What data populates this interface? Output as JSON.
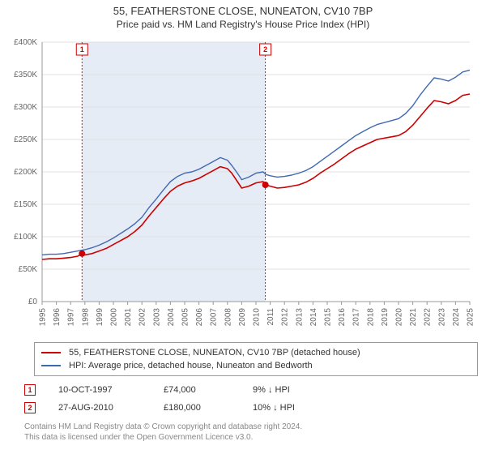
{
  "title": {
    "line1": "55, FEATHERSTONE CLOSE, NUNEATON, CV10 7BP",
    "line2": "Price paid vs. HM Land Registry's House Price Index (HPI)"
  },
  "chart": {
    "type": "line",
    "background_color": "#ffffff",
    "grid_color": "#e0e0e0",
    "axis_color": "#999999",
    "y": {
      "label_prefix": "£",
      "min": 0,
      "max": 400000,
      "tick_step": 50000,
      "ticks": [
        "£0",
        "£50K",
        "£100K",
        "£150K",
        "£200K",
        "£250K",
        "£300K",
        "£350K",
        "£400K"
      ]
    },
    "x": {
      "min": 1995,
      "max": 2025,
      "ticks": [
        "1995",
        "1996",
        "1997",
        "1998",
        "1999",
        "2000",
        "2001",
        "2002",
        "2003",
        "2004",
        "2005",
        "2006",
        "2007",
        "2008",
        "2009",
        "2010",
        "2011",
        "2012",
        "2013",
        "2014",
        "2015",
        "2016",
        "2017",
        "2018",
        "2019",
        "2020",
        "2021",
        "2022",
        "2023",
        "2024",
        "2025"
      ]
    },
    "series": [
      {
        "id": "price_paid",
        "color": "#cc0000",
        "width": 1.6,
        "label": "55, FEATHERSTONE CLOSE, NUNEATON, CV10 7BP (detached house)",
        "points": [
          [
            1995.0,
            65000
          ],
          [
            1995.5,
            66000
          ],
          [
            1996.0,
            66000
          ],
          [
            1996.5,
            67000
          ],
          [
            1997.0,
            68000
          ],
          [
            1997.5,
            70000
          ],
          [
            1997.8,
            74000
          ],
          [
            1998.0,
            72000
          ],
          [
            1998.5,
            74000
          ],
          [
            1999.0,
            78000
          ],
          [
            1999.5,
            82000
          ],
          [
            2000.0,
            88000
          ],
          [
            2000.5,
            94000
          ],
          [
            2001.0,
            100000
          ],
          [
            2001.5,
            108000
          ],
          [
            2002.0,
            118000
          ],
          [
            2002.5,
            132000
          ],
          [
            2003.0,
            145000
          ],
          [
            2003.5,
            158000
          ],
          [
            2004.0,
            170000
          ],
          [
            2004.5,
            178000
          ],
          [
            2005.0,
            183000
          ],
          [
            2005.5,
            186000
          ],
          [
            2006.0,
            190000
          ],
          [
            2006.5,
            196000
          ],
          [
            2007.0,
            202000
          ],
          [
            2007.5,
            208000
          ],
          [
            2008.0,
            205000
          ],
          [
            2008.3,
            198000
          ],
          [
            2008.7,
            185000
          ],
          [
            2009.0,
            175000
          ],
          [
            2009.5,
            178000
          ],
          [
            2010.0,
            183000
          ],
          [
            2010.5,
            185000
          ],
          [
            2010.7,
            180000
          ],
          [
            2011.0,
            178000
          ],
          [
            2011.5,
            175000
          ],
          [
            2012.0,
            176000
          ],
          [
            2012.5,
            178000
          ],
          [
            2013.0,
            180000
          ],
          [
            2013.5,
            184000
          ],
          [
            2014.0,
            190000
          ],
          [
            2014.5,
            198000
          ],
          [
            2015.0,
            205000
          ],
          [
            2015.5,
            212000
          ],
          [
            2016.0,
            220000
          ],
          [
            2016.5,
            228000
          ],
          [
            2017.0,
            235000
          ],
          [
            2017.5,
            240000
          ],
          [
            2018.0,
            245000
          ],
          [
            2018.5,
            250000
          ],
          [
            2019.0,
            252000
          ],
          [
            2019.5,
            254000
          ],
          [
            2020.0,
            256000
          ],
          [
            2020.5,
            262000
          ],
          [
            2021.0,
            272000
          ],
          [
            2021.5,
            285000
          ],
          [
            2022.0,
            298000
          ],
          [
            2022.5,
            310000
          ],
          [
            2023.0,
            308000
          ],
          [
            2023.5,
            305000
          ],
          [
            2024.0,
            310000
          ],
          [
            2024.5,
            318000
          ],
          [
            2025.0,
            320000
          ]
        ]
      },
      {
        "id": "hpi",
        "color": "#4169b2",
        "width": 1.4,
        "label": "HPI: Average price, detached house, Nuneaton and Bedworth",
        "points": [
          [
            1995.0,
            72000
          ],
          [
            1995.5,
            73000
          ],
          [
            1996.0,
            73000
          ],
          [
            1996.5,
            74000
          ],
          [
            1997.0,
            76000
          ],
          [
            1997.5,
            78000
          ],
          [
            1998.0,
            80000
          ],
          [
            1998.5,
            83000
          ],
          [
            1999.0,
            87000
          ],
          [
            1999.5,
            92000
          ],
          [
            2000.0,
            98000
          ],
          [
            2000.5,
            105000
          ],
          [
            2001.0,
            112000
          ],
          [
            2001.5,
            120000
          ],
          [
            2002.0,
            130000
          ],
          [
            2002.5,
            145000
          ],
          [
            2003.0,
            158000
          ],
          [
            2003.5,
            172000
          ],
          [
            2004.0,
            185000
          ],
          [
            2004.5,
            193000
          ],
          [
            2005.0,
            198000
          ],
          [
            2005.5,
            200000
          ],
          [
            2006.0,
            204000
          ],
          [
            2006.5,
            210000
          ],
          [
            2007.0,
            216000
          ],
          [
            2007.5,
            222000
          ],
          [
            2008.0,
            218000
          ],
          [
            2008.3,
            210000
          ],
          [
            2008.7,
            198000
          ],
          [
            2009.0,
            188000
          ],
          [
            2009.5,
            192000
          ],
          [
            2010.0,
            198000
          ],
          [
            2010.5,
            200000
          ],
          [
            2010.7,
            196000
          ],
          [
            2011.0,
            194000
          ],
          [
            2011.5,
            192000
          ],
          [
            2012.0,
            193000
          ],
          [
            2012.5,
            195000
          ],
          [
            2013.0,
            198000
          ],
          [
            2013.5,
            202000
          ],
          [
            2014.0,
            208000
          ],
          [
            2014.5,
            216000
          ],
          [
            2015.0,
            224000
          ],
          [
            2015.5,
            232000
          ],
          [
            2016.0,
            240000
          ],
          [
            2016.5,
            248000
          ],
          [
            2017.0,
            256000
          ],
          [
            2017.5,
            262000
          ],
          [
            2018.0,
            268000
          ],
          [
            2018.5,
            273000
          ],
          [
            2019.0,
            276000
          ],
          [
            2019.5,
            279000
          ],
          [
            2020.0,
            282000
          ],
          [
            2020.5,
            290000
          ],
          [
            2021.0,
            302000
          ],
          [
            2021.5,
            318000
          ],
          [
            2022.0,
            332000
          ],
          [
            2022.5,
            345000
          ],
          [
            2023.0,
            343000
          ],
          [
            2023.5,
            340000
          ],
          [
            2024.0,
            346000
          ],
          [
            2024.5,
            354000
          ],
          [
            2025.0,
            357000
          ]
        ]
      }
    ],
    "sale_markers": [
      {
        "n": "1",
        "year": 1997.8,
        "color": "#cc0000",
        "band": false,
        "dot_y": 74000
      },
      {
        "n": "2",
        "year": 2010.66,
        "color": "#cc0000",
        "band": true,
        "band_start": 1997.8,
        "band_color": "#e6ecf5",
        "dot_y": 180000
      }
    ]
  },
  "legend": {
    "series1": {
      "color": "#cc0000",
      "label": "55, FEATHERSTONE CLOSE, NUNEATON, CV10 7BP (detached house)"
    },
    "series2": {
      "color": "#4169b2",
      "label": "HPI: Average price, detached house, Nuneaton and Bedworth"
    }
  },
  "sales": [
    {
      "n": "1",
      "color": "#cc0000",
      "date": "10-OCT-1997",
      "price": "£74,000",
      "delta": "9% ↓ HPI"
    },
    {
      "n": "2",
      "color": "#cc0000",
      "date": "27-AUG-2010",
      "price": "£180,000",
      "delta": "10% ↓ HPI"
    }
  ],
  "footer": {
    "line1": "Contains HM Land Registry data © Crown copyright and database right 2024.",
    "line2": "This data is licensed under the Open Government Licence v3.0."
  }
}
